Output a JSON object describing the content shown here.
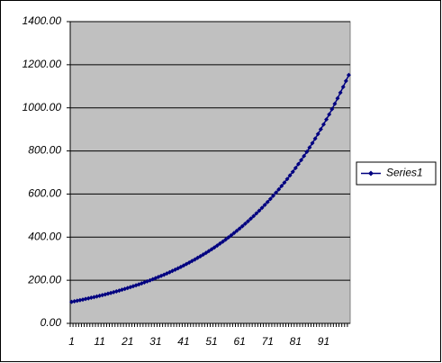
{
  "chart_data": {
    "type": "line",
    "categories": [
      1,
      null,
      null,
      null,
      null,
      null,
      null,
      null,
      null,
      null,
      11,
      null,
      null,
      null,
      null,
      null,
      null,
      null,
      null,
      null,
      21,
      null,
      null,
      null,
      null,
      null,
      null,
      null,
      null,
      null,
      31,
      null,
      null,
      null,
      null,
      null,
      null,
      null,
      null,
      null,
      41,
      null,
      null,
      null,
      null,
      null,
      null,
      null,
      null,
      null,
      51,
      null,
      null,
      null,
      null,
      null,
      null,
      null,
      null,
      null,
      61,
      null,
      null,
      null,
      null,
      null,
      null,
      null,
      null,
      null,
      71,
      null,
      null,
      null,
      null,
      null,
      null,
      null,
      null,
      null,
      81,
      null,
      null,
      null,
      null,
      null,
      null,
      null,
      null,
      null,
      91,
      null,
      null,
      null,
      null,
      null,
      null,
      null,
      null,
      null
    ],
    "series": [
      {
        "name": "Series1",
        "color": "#000080",
        "values": [
          100,
          102.5,
          105.06,
          107.69,
          110.38,
          113.14,
          115.97,
          118.87,
          121.84,
          124.89,
          128.01,
          131.21,
          134.49,
          137.85,
          141.3,
          144.83,
          148.45,
          152.16,
          155.97,
          159.87,
          163.86,
          167.96,
          172.16,
          176.46,
          180.87,
          185.39,
          190.03,
          194.78,
          199.65,
          204.64,
          209.76,
          215,
          220.38,
          225.89,
          231.53,
          237.32,
          243.26,
          249.34,
          255.57,
          261.96,
          268.51,
          275.22,
          282.1,
          289.16,
          296.39,
          303.79,
          311.39,
          319.17,
          327.15,
          335.33,
          343.71,
          352.31,
          361.11,
          370.14,
          379.4,
          388.88,
          398.6,
          408.57,
          418.78,
          429.25,
          439.98,
          450.98,
          462.26,
          473.81,
          485.66,
          497.8,
          510.25,
          523,
          536.08,
          549.48,
          563.22,
          577.3,
          591.73,
          606.52,
          621.69,
          637.23,
          653.16,
          669.49,
          686.23,
          703.38,
          720.97,
          738.99,
          757.47,
          776.41,
          795.82,
          815.71,
          836.1,
          857.01,
          878.43,
          900.39,
          922.9,
          945.97,
          969.62,
          993.86,
          1018.71,
          1044.18,
          1070.28,
          1097.04,
          1124.46,
          1152.57
        ]
      }
    ],
    "ylim": [
      0,
      1400
    ],
    "yticks": [
      {
        "value": 0,
        "label": "0.00"
      },
      {
        "value": 200,
        "label": "200.00"
      },
      {
        "value": 400,
        "label": "400.00"
      },
      {
        "value": 600,
        "label": "600.00"
      },
      {
        "value": 800,
        "label": "800.00"
      },
      {
        "value": 1000,
        "label": "1000.00"
      },
      {
        "value": 1200,
        "label": "1200.00"
      },
      {
        "value": 1400,
        "label": "1400.00"
      }
    ],
    "grid": true,
    "plot_background": "#c0c0c0",
    "legend": "right"
  }
}
